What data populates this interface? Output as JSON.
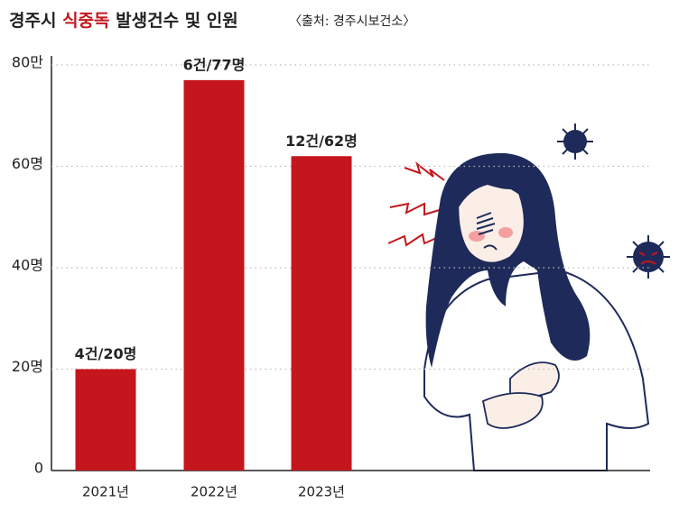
{
  "chart_data": {
    "type": "bar",
    "title": {
      "prefix": "경주시 ",
      "highlight": "식중독",
      "suffix": " 발생건수 및 인원"
    },
    "subtitle": "〈출처: 경주시보건소〉",
    "categories": [
      "2021년",
      "2022년",
      "2023년"
    ],
    "values": [
      20,
      77,
      62
    ],
    "value_labels": [
      "4건/20명",
      "6건/77명",
      "12건/62명"
    ],
    "color": "#c4161c",
    "highlight_color": "#c4161c",
    "ylim": [
      0,
      80
    ],
    "yticks": [
      0,
      {
        "value": 20,
        "label": "20명"
      },
      {
        "value": 40,
        "label": "40명"
      },
      {
        "value": 60,
        "label": "60명"
      },
      {
        "value": 80,
        "label": "80만"
      }
    ],
    "grid": true
  }
}
